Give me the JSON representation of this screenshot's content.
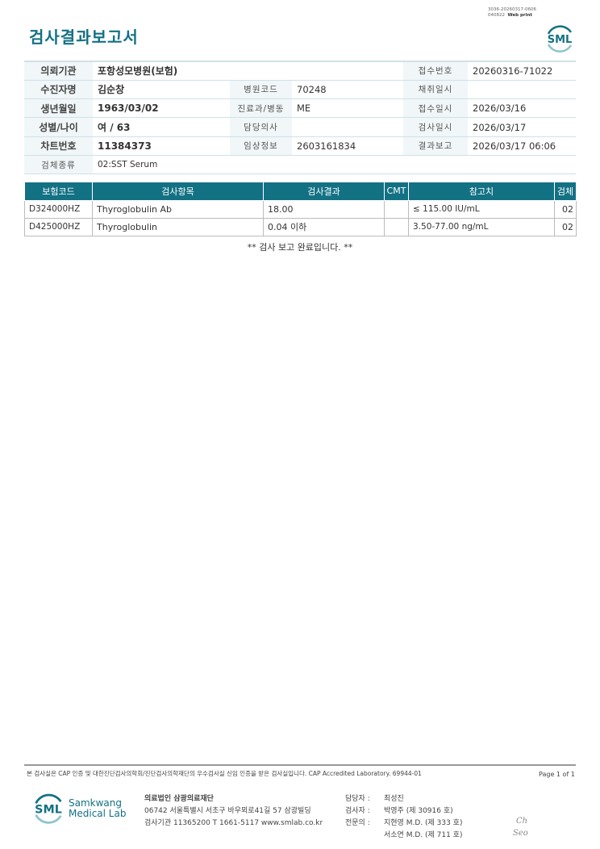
{
  "header": {
    "title": "검사결과보고서",
    "doc_id": "3036-20260317-0606",
    "doc_id2": "040822",
    "print_label": "Web print",
    "logo": "SML"
  },
  "info": {
    "rows": [
      [
        {
          "l": "의뢰기관",
          "v": "포항성모병원(보험)"
        },
        {
          "l": "",
          "v": ""
        },
        {
          "l": "접수번호",
          "v": "20260316-71022"
        }
      ],
      [
        {
          "l": "수진자명",
          "v": "김순창"
        },
        {
          "l": "병원코드",
          "v": "70248"
        },
        {
          "l": "채취일시",
          "v": ""
        }
      ],
      [
        {
          "l": "생년월일",
          "v": "1963/03/02"
        },
        {
          "l": "진료과/병동",
          "v": "ME"
        },
        {
          "l": "접수일시",
          "v": "2026/03/16"
        }
      ],
      [
        {
          "l": "성별/나이",
          "v": "여 / 63"
        },
        {
          "l": "담당의사",
          "v": ""
        },
        {
          "l": "검사일시",
          "v": "2026/03/17"
        }
      ],
      [
        {
          "l": "차트번호",
          "v": "11384373"
        },
        {
          "l": "임상정보",
          "v": "2603161834"
        },
        {
          "l": "결과보고",
          "v": "2026/03/17 06:06"
        }
      ]
    ],
    "specimen_label": "검체종류",
    "specimen": "02:SST Serum"
  },
  "results": {
    "headers": [
      "보험코드",
      "검사항목",
      "검사결과",
      "CMT",
      "참고치",
      "검체"
    ],
    "rows": [
      [
        "D324000HZ",
        "Thyroglobulin Ab",
        "18.00",
        "",
        "≤ 115.00 IU/mL",
        "02"
      ],
      [
        "D425000HZ",
        "Thyroglobulin",
        "0.04 이하",
        "",
        "3.50-77.00 ng/mL",
        "02"
      ]
    ],
    "complete": "** 검사 보고 완료입니다. **"
  },
  "footer": {
    "note": "본 검사실은 CAP 인증 및 대한진단검사의학회/진단검사의학재단의 우수검사실 신임 인증을 받은 검사실입니다.  CAP Accredited Laboratory. 69944-01",
    "page": "Page 1 of 1",
    "logo_name1": "Samkwang",
    "logo_name2": "Medical Lab",
    "org": "의료법인 삼광의료재단",
    "address": "06742 서울특별시 서초구 바우뫼로41길 57 삼광빌딩",
    "contact": "검사기관 11365200  T 1661-5117  www.smlab.co.kr",
    "staff": [
      {
        "role": "담당자 :",
        "name": "최성진"
      },
      {
        "role": "검사자 :",
        "name": "박영주 (제 30916 호)"
      },
      {
        "role": "전문의 :",
        "name": "지현영 M.D. (제 333 호)"
      },
      {
        "role": "",
        "name": "서소연 M.D. (제 711 호)"
      }
    ],
    "signatures": [
      "Ch",
      "Seo"
    ]
  },
  "colors": {
    "accent": "#137184"
  }
}
